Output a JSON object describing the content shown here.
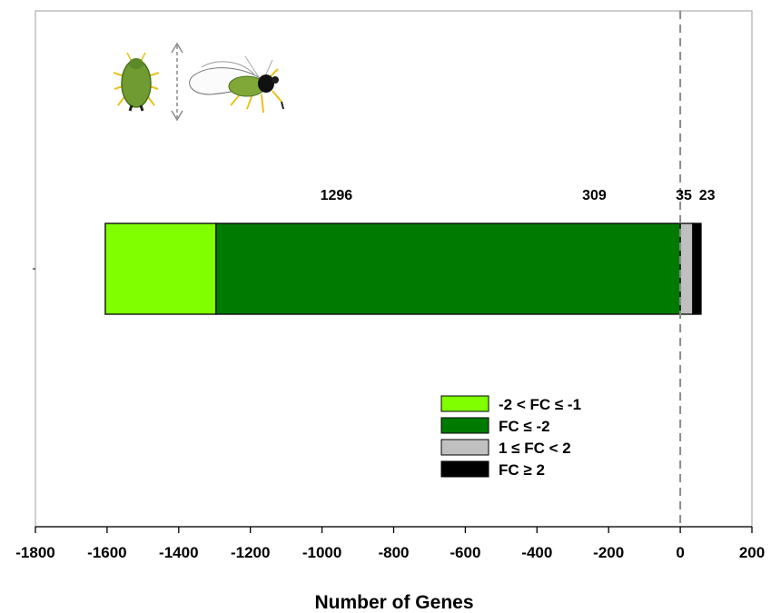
{
  "chart_data": {
    "type": "bar",
    "orientation": "horizontal",
    "stacked": true,
    "xlabel": "Number of Genes",
    "xlim": [
      -1800,
      200
    ],
    "x_ticks": [
      -1800,
      -1600,
      -1400,
      -1200,
      -1000,
      -800,
      -600,
      -400,
      -200,
      0,
      200
    ],
    "reference_line": 0,
    "grid": false,
    "legend_position": "bottom-right",
    "series": [
      {
        "name": "FC ≤  -2",
        "value": -1296,
        "label": "1296",
        "color": "#007a00"
      },
      {
        "name": "-2 < FC ≤  -1",
        "value": -309,
        "label": "309",
        "color": "#80ff00"
      },
      {
        "name": "1 ≤  FC < 2",
        "value": 35,
        "label": "35",
        "color": "#c0c0c0"
      },
      {
        "name": "FC ≥  2",
        "value": 23,
        "label": "23",
        "color": "#000000"
      }
    ],
    "legend": [
      {
        "label": "-2 < FC ≤  -1",
        "color": "#80ff00"
      },
      {
        "label": "FC ≤  -2",
        "color": "#007a00"
      },
      {
        "label": "1 ≤  FC < 2",
        "color": "#c0c0c0"
      },
      {
        "label": "FC ≥  2",
        "color": "#000000"
      }
    ]
  },
  "icons": {
    "left": "wingless-aphid-icon",
    "arrow": "double-arrow-icon",
    "right": "winged-aphid-icon"
  }
}
